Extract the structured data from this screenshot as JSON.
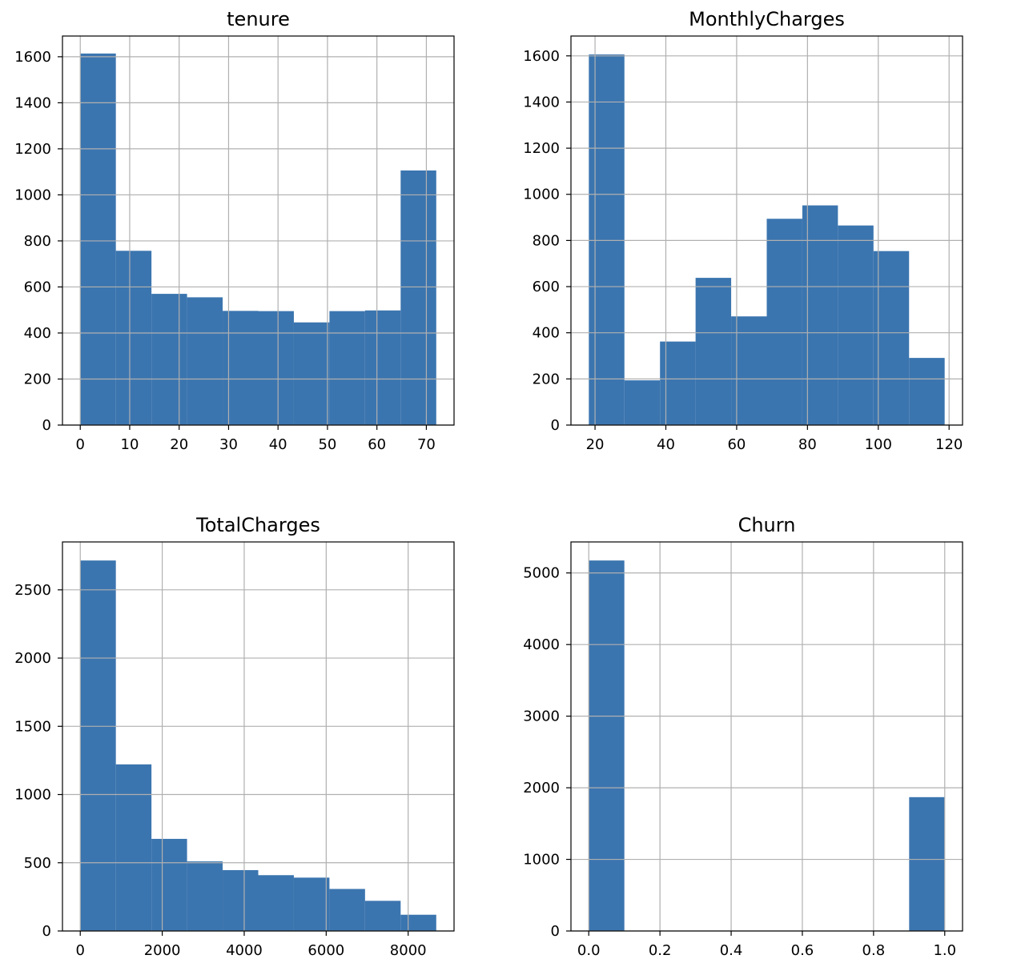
{
  "colors": {
    "bar": "#3b75af",
    "grid": "#b0b0b0",
    "frame": "#000000"
  },
  "chart_data": [
    {
      "type": "bar",
      "title": "tenure",
      "bin_edges": [
        0,
        7.2,
        14.4,
        21.6,
        28.8,
        36,
        43.2,
        50.4,
        57.6,
        64.8,
        72
      ],
      "values": [
        1614,
        757,
        570,
        555,
        496,
        495,
        446,
        495,
        498,
        1106
      ],
      "xlim": [
        -3.6,
        75.6
      ],
      "ylim": [
        0,
        1690
      ],
      "xticks": [
        0,
        10,
        20,
        30,
        40,
        50,
        60,
        70
      ],
      "xtick_labels": [
        "0",
        "10",
        "20",
        "30",
        "40",
        "50",
        "60",
        "70"
      ],
      "yticks": [
        0,
        200,
        400,
        600,
        800,
        1000,
        1200,
        1400,
        1600
      ],
      "ytick_labels": [
        "0",
        "200",
        "400",
        "600",
        "800",
        "1000",
        "1200",
        "1400",
        "1600"
      ]
    },
    {
      "type": "bar",
      "title": "MonthlyCharges",
      "bin_edges": [
        18.25,
        28.3,
        38.35,
        48.4,
        58.45,
        68.5,
        78.55,
        88.6,
        98.65,
        108.7,
        118.75
      ],
      "values": [
        1606,
        194,
        362,
        638,
        471,
        894,
        952,
        865,
        754,
        291
      ],
      "xlim": [
        13.2,
        123.8
      ],
      "ylim": [
        0,
        1686
      ],
      "xticks": [
        20,
        40,
        60,
        80,
        100,
        120
      ],
      "xtick_labels": [
        "20",
        "40",
        "60",
        "80",
        "100",
        "120"
      ],
      "yticks": [
        0,
        200,
        400,
        600,
        800,
        1000,
        1200,
        1400,
        1600
      ],
      "ytick_labels": [
        "0",
        "200",
        "400",
        "600",
        "800",
        "1000",
        "1200",
        "1400",
        "1600"
      ]
    },
    {
      "type": "bar",
      "title": "TotalCharges",
      "bin_edges": [
        0,
        868.5,
        1737,
        2605.5,
        3474,
        4342.5,
        5211,
        6079.5,
        6948,
        7816.5,
        8685
      ],
      "values": [
        2715,
        1221,
        675,
        510,
        446,
        409,
        391,
        308,
        221,
        119
      ],
      "xlim": [
        -434.25,
        9119.25
      ],
      "ylim": [
        0,
        2851
      ],
      "xticks": [
        0,
        2000,
        4000,
        6000,
        8000
      ],
      "xtick_labels": [
        "0",
        "2000",
        "4000",
        "6000",
        "8000"
      ],
      "yticks": [
        0,
        500,
        1000,
        1500,
        2000,
        2500
      ],
      "ytick_labels": [
        "0",
        "500",
        "1000",
        "1500",
        "2000",
        "2500"
      ]
    },
    {
      "type": "bar",
      "title": "Churn",
      "bin_edges": [
        0,
        0.1,
        0.2,
        0.3,
        0.4,
        0.5,
        0.6,
        0.7,
        0.8,
        0.9,
        1.0
      ],
      "values": [
        5174,
        0,
        0,
        0,
        0,
        0,
        0,
        0,
        0,
        1869
      ],
      "xlim": [
        -0.05,
        1.05
      ],
      "ylim": [
        0,
        5433
      ],
      "xticks": [
        0,
        0.2,
        0.4,
        0.6,
        0.8,
        1.0
      ],
      "xtick_labels": [
        "0.0",
        "0.2",
        "0.4",
        "0.6",
        "0.8",
        "1.0"
      ],
      "yticks": [
        0,
        1000,
        2000,
        3000,
        4000,
        5000
      ],
      "ytick_labels": [
        "0",
        "1000",
        "2000",
        "3000",
        "4000",
        "5000"
      ]
    }
  ]
}
